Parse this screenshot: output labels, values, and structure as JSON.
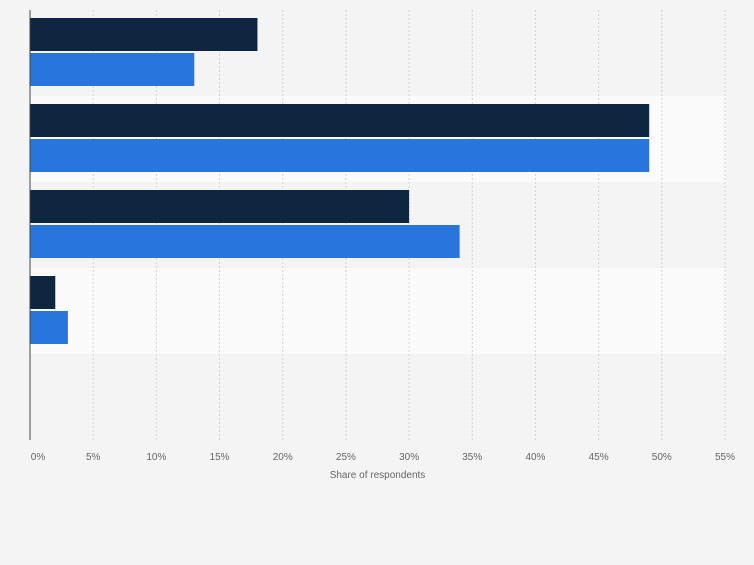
{
  "chart_data": {
    "type": "bar",
    "orientation": "horizontal",
    "categories": [
      "",
      "",
      "",
      "",
      ""
    ],
    "series": [
      {
        "color": "#0f2640",
        "values": [
          18,
          49,
          30,
          2,
          0
        ]
      },
      {
        "color": "#2876dd",
        "values": [
          13,
          49,
          34,
          3,
          0
        ]
      }
    ],
    "xlabel": "Share of respondents",
    "xlim": [
      0,
      55
    ],
    "ticks": [
      "0%",
      "5%",
      "10%",
      "15%",
      "20%",
      "25%",
      "30%",
      "35%",
      "40%",
      "45%",
      "50%",
      "55%"
    ],
    "grid": true,
    "band_colors": [
      "#f4f4f4",
      "#fafafa"
    ]
  }
}
